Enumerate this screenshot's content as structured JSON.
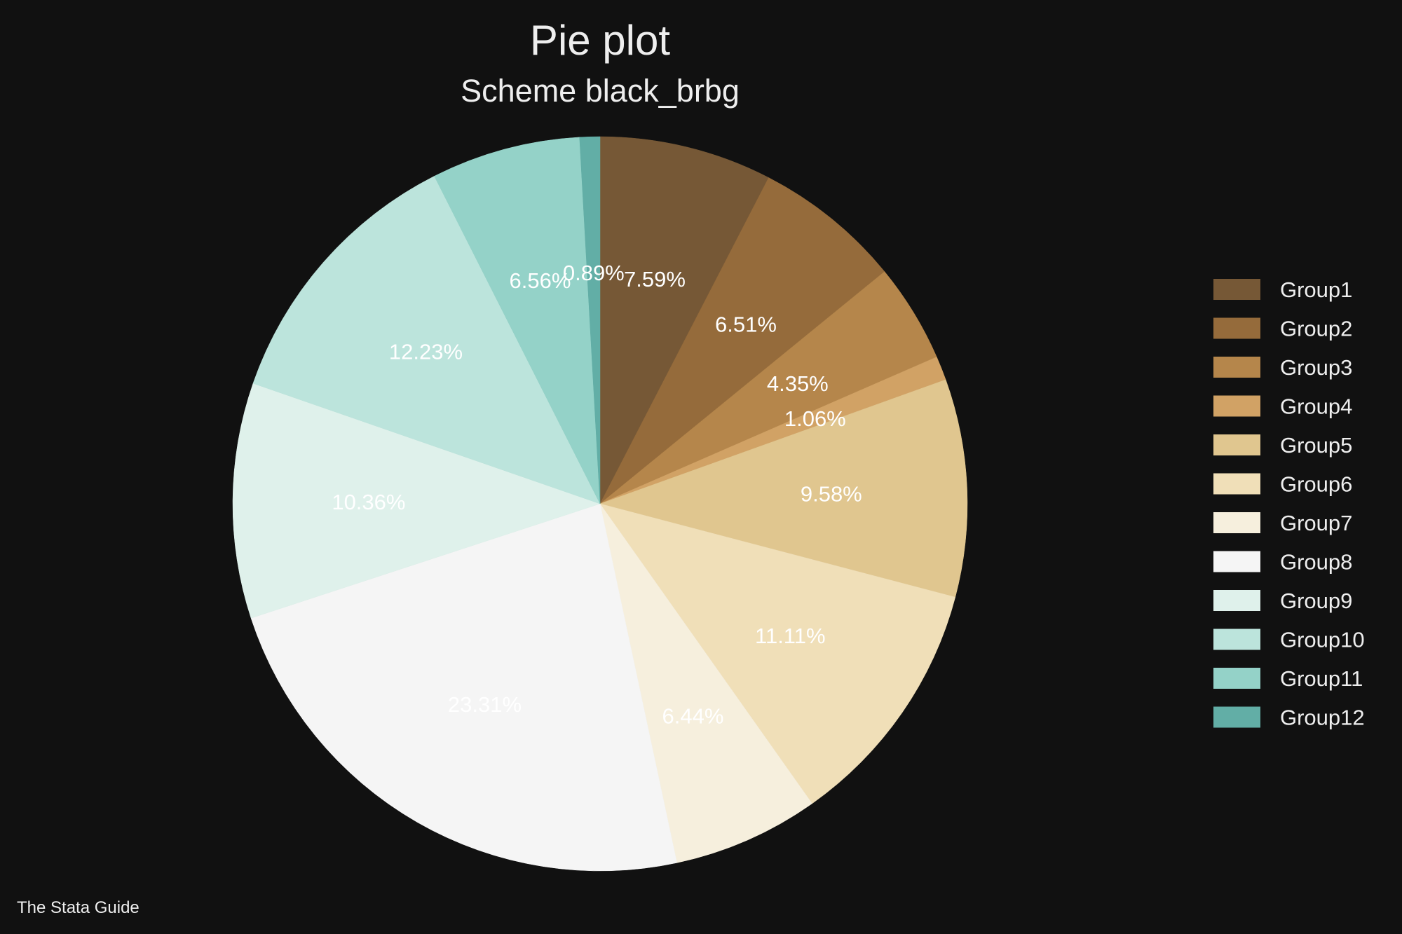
{
  "chart_data": {
    "type": "pie",
    "title": "Pie plot",
    "subtitle": "Scheme black_brbg",
    "note": "The Stata Guide",
    "legend_position": "right",
    "background": "#111111",
    "slices": [
      {
        "name": "Group1",
        "value": 7.59,
        "label": "7.59%",
        "color": "#765836"
      },
      {
        "name": "Group2",
        "value": 6.51,
        "label": "6.51%",
        "color": "#956b3b"
      },
      {
        "name": "Group3",
        "value": 4.35,
        "label": "4.35%",
        "color": "#b5864b"
      },
      {
        "name": "Group4",
        "value": 1.06,
        "label": "1.06%",
        "color": "#d1a265"
      },
      {
        "name": "Group5",
        "value": 9.58,
        "label": "9.58%",
        "color": "#e0c68f"
      },
      {
        "name": "Group6",
        "value": 11.11,
        "label": "11.11%",
        "color": "#f0dfb8"
      },
      {
        "name": "Group7",
        "value": 6.44,
        "label": "6.44%",
        "color": "#f6efdd"
      },
      {
        "name": "Group8",
        "value": 23.31,
        "label": "23.31%",
        "color": "#f5f5f5"
      },
      {
        "name": "Group9",
        "value": 10.36,
        "label": "10.36%",
        "color": "#dff1eb"
      },
      {
        "name": "Group10",
        "value": 12.23,
        "label": "12.23%",
        "color": "#bce4dc"
      },
      {
        "name": "Group11",
        "value": 6.56,
        "label": "6.56%",
        "color": "#94d2c8"
      },
      {
        "name": "Group12",
        "value": 0.89,
        "label": "0.89%",
        "color": "#62aea6"
      }
    ]
  }
}
